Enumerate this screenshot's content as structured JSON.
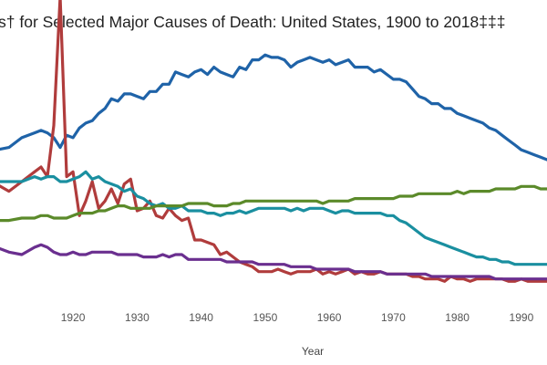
{
  "chart_data": {
    "type": "line",
    "title": "s† for Selected Major Causes of Death: United States, 1900 to 2018‡‡‡",
    "xlabel": "Year",
    "ylabel": "",
    "x_ticks": [
      "1920",
      "1930",
      "1940",
      "1950",
      "1960",
      "1970",
      "1980",
      "1990"
    ],
    "xlim": [
      1908.6,
      1994
    ],
    "ylim": [
      0,
      100
    ],
    "grid": false,
    "series": [
      {
        "color": "#1f63a8",
        "x": [
          1908,
          1910,
          1912,
          1914,
          1915,
          1916,
          1917,
          1918,
          1919,
          1920,
          1921,
          1922,
          1923,
          1924,
          1925,
          1926,
          1927,
          1928,
          1929,
          1930,
          1931,
          1932,
          1933,
          1934,
          1935,
          1936,
          1937,
          1938,
          1939,
          1940,
          1941,
          1942,
          1943,
          1944,
          1945,
          1946,
          1947,
          1948,
          1949,
          1950,
          1951,
          1952,
          1953,
          1954,
          1955,
          1956,
          1957,
          1958,
          1959,
          1960,
          1961,
          1962,
          1963,
          1964,
          1965,
          1966,
          1967,
          1968,
          1969,
          1970,
          1971,
          1972,
          1973,
          1974,
          1975,
          1976,
          1977,
          1978,
          1979,
          1980,
          1981,
          1982,
          1983,
          1984,
          1985,
          1986,
          1987,
          1988,
          1989,
          1990,
          1991,
          1992,
          1993,
          1994
        ],
        "values": [
          64,
          65,
          69,
          71,
          72,
          71,
          69,
          65,
          70,
          69,
          73,
          75,
          76,
          79,
          81,
          85,
          84,
          87,
          87,
          86,
          85,
          88,
          88,
          91,
          91,
          96,
          95,
          94,
          96,
          97,
          95,
          98,
          96,
          95,
          94,
          98,
          97,
          101,
          101,
          103,
          102,
          102,
          101,
          98,
          100,
          101,
          102,
          101,
          100,
          101,
          99,
          100,
          101,
          98,
          98,
          98,
          96,
          97,
          95,
          93,
          93,
          92,
          89,
          86,
          85,
          83,
          83,
          81,
          81,
          79,
          78,
          77,
          76,
          75,
          73,
          72,
          70,
          68,
          66,
          64,
          63,
          62,
          61,
          60
        ]
      },
      {
        "color": "#b03c3c",
        "x": [
          1908,
          1910,
          1912,
          1914,
          1915,
          1916,
          1917,
          1918,
          1919,
          1920,
          1921,
          1922,
          1923,
          1924,
          1925,
          1926,
          1927,
          1928,
          1929,
          1930,
          1931,
          1932,
          1933,
          1934,
          1935,
          1936,
          1937,
          1938,
          1939,
          1940,
          1941,
          1942,
          1943,
          1944,
          1945,
          1946,
          1947,
          1948,
          1949,
          1950,
          1951,
          1952,
          1953,
          1954,
          1955,
          1956,
          1957,
          1958,
          1959,
          1960,
          1961,
          1962,
          1963,
          1964,
          1965,
          1966,
          1967,
          1968,
          1969,
          1970,
          1971,
          1972,
          1973,
          1974,
          1975,
          1976,
          1977,
          1978,
          1979,
          1980,
          1981,
          1982,
          1983,
          1984,
          1985,
          1986,
          1987,
          1988,
          1989,
          1990,
          1991,
          1992,
          1993,
          1994
        ],
        "values": [
          50,
          47,
          51,
          55,
          57,
          53,
          74,
          127,
          53,
          55,
          37,
          43,
          51,
          40,
          43,
          48,
          42,
          50,
          52,
          39,
          40,
          43,
          37,
          36,
          40,
          37,
          35,
          36,
          27,
          27,
          26,
          25,
          21,
          22,
          20,
          18,
          17,
          16,
          14,
          14,
          14,
          15,
          14,
          13,
          14,
          14,
          14,
          15,
          13,
          14,
          13,
          14,
          15,
          13,
          14,
          13,
          13,
          14,
          13,
          13,
          13,
          13,
          12,
          12,
          11,
          11,
          11,
          10,
          12,
          11,
          11,
          10,
          11,
          11,
          11,
          11,
          11,
          10,
          10,
          11,
          10,
          10,
          10,
          10
        ]
      },
      {
        "color": "#1a8fa0",
        "x": [
          1908,
          1910,
          1912,
          1914,
          1915,
          1916,
          1917,
          1918,
          1919,
          1920,
          1921,
          1922,
          1923,
          1924,
          1925,
          1926,
          1927,
          1928,
          1929,
          1930,
          1931,
          1932,
          1933,
          1934,
          1935,
          1936,
          1937,
          1938,
          1939,
          1940,
          1941,
          1942,
          1943,
          1944,
          1945,
          1946,
          1947,
          1948,
          1949,
          1950,
          1951,
          1952,
          1953,
          1954,
          1955,
          1956,
          1957,
          1958,
          1959,
          1960,
          1961,
          1962,
          1963,
          1964,
          1965,
          1966,
          1967,
          1968,
          1969,
          1970,
          1971,
          1972,
          1973,
          1974,
          1975,
          1976,
          1977,
          1978,
          1979,
          1980,
          1981,
          1982,
          1983,
          1984,
          1985,
          1986,
          1987,
          1988,
          1989,
          1990,
          1991,
          1992,
          1993,
          1994
        ],
        "values": [
          51,
          51,
          51,
          53,
          52,
          53,
          53,
          51,
          51,
          52,
          53,
          55,
          52,
          53,
          51,
          50,
          49,
          47,
          48,
          45,
          44,
          42,
          41,
          42,
          40,
          40,
          41,
          39,
          39,
          39,
          38,
          38,
          37,
          38,
          38,
          39,
          38,
          39,
          40,
          40,
          40,
          40,
          40,
          39,
          40,
          39,
          40,
          40,
          40,
          39,
          38,
          39,
          39,
          38,
          38,
          38,
          38,
          38,
          37,
          37,
          35,
          34,
          32,
          30,
          28,
          27,
          26,
          25,
          24,
          23,
          22,
          21,
          20,
          20,
          19,
          19,
          18,
          18,
          17,
          17,
          17,
          17,
          17,
          17
        ]
      },
      {
        "color": "#5b8a2a",
        "x": [
          1908,
          1910,
          1912,
          1914,
          1915,
          1916,
          1917,
          1918,
          1919,
          1920,
          1921,
          1922,
          1923,
          1924,
          1925,
          1926,
          1927,
          1928,
          1929,
          1930,
          1931,
          1932,
          1933,
          1934,
          1935,
          1936,
          1937,
          1938,
          1939,
          1940,
          1941,
          1942,
          1943,
          1944,
          1945,
          1946,
          1947,
          1948,
          1949,
          1950,
          1951,
          1952,
          1953,
          1954,
          1955,
          1956,
          1957,
          1958,
          1959,
          1960,
          1961,
          1962,
          1963,
          1964,
          1965,
          1966,
          1967,
          1968,
          1969,
          1970,
          1971,
          1972,
          1973,
          1974,
          1975,
          1976,
          1977,
          1978,
          1979,
          1980,
          1981,
          1982,
          1983,
          1984,
          1985,
          1986,
          1987,
          1988,
          1989,
          1990,
          1991,
          1992,
          1993,
          1994
        ],
        "values": [
          35,
          35,
          36,
          36,
          37,
          37,
          36,
          36,
          36,
          37,
          38,
          38,
          38,
          39,
          39,
          40,
          41,
          41,
          40,
          40,
          40,
          40,
          41,
          41,
          41,
          41,
          41,
          42,
          42,
          42,
          42,
          41,
          41,
          41,
          42,
          42,
          43,
          43,
          43,
          43,
          43,
          43,
          43,
          43,
          43,
          43,
          43,
          43,
          42,
          43,
          43,
          43,
          43,
          44,
          44,
          44,
          44,
          44,
          44,
          44,
          45,
          45,
          45,
          46,
          46,
          46,
          46,
          46,
          46,
          47,
          46,
          47,
          47,
          47,
          47,
          48,
          48,
          48,
          48,
          49,
          49,
          49,
          48,
          48
        ]
      },
      {
        "color": "#6a2f8f",
        "x": [
          1908,
          1910,
          1912,
          1914,
          1915,
          1916,
          1917,
          1918,
          1919,
          1920,
          1921,
          1922,
          1923,
          1924,
          1925,
          1926,
          1927,
          1928,
          1929,
          1930,
          1931,
          1932,
          1933,
          1934,
          1935,
          1936,
          1937,
          1938,
          1939,
          1940,
          1941,
          1942,
          1943,
          1944,
          1945,
          1946,
          1947,
          1948,
          1949,
          1950,
          1951,
          1952,
          1953,
          1954,
          1955,
          1956,
          1957,
          1958,
          1959,
          1960,
          1961,
          1962,
          1963,
          1964,
          1965,
          1966,
          1967,
          1968,
          1969,
          1970,
          1971,
          1972,
          1973,
          1974,
          1975,
          1976,
          1977,
          1978,
          1979,
          1980,
          1981,
          1982,
          1983,
          1984,
          1985,
          1986,
          1987,
          1988,
          1989,
          1990,
          1991,
          1992,
          1993,
          1994
        ],
        "values": [
          24,
          22,
          21,
          24,
          25,
          24,
          22,
          21,
          21,
          22,
          21,
          21,
          22,
          22,
          22,
          22,
          21,
          21,
          21,
          21,
          20,
          20,
          20,
          21,
          20,
          21,
          21,
          19,
          19,
          19,
          19,
          19,
          19,
          18,
          18,
          18,
          18,
          18,
          17,
          17,
          17,
          17,
          17,
          16,
          16,
          16,
          16,
          15,
          15,
          15,
          15,
          15,
          15,
          14,
          14,
          14,
          14,
          14,
          13,
          13,
          13,
          13,
          13,
          13,
          13,
          12,
          12,
          12,
          12,
          12,
          12,
          12,
          12,
          12,
          12,
          11,
          11,
          11,
          11,
          11,
          11,
          11,
          11,
          11
        ]
      }
    ]
  }
}
